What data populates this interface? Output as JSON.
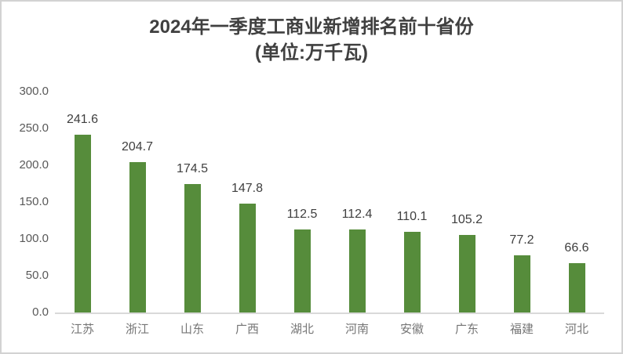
{
  "title": {
    "line1": "2024年一季度工商业新增排名前十省份",
    "line2": "(单位:万千瓦)"
  },
  "colors": {
    "bar": "#568c3b",
    "title_text": "#404040",
    "value_label_text": "#3f3f3f",
    "axis_tick_text": "#595959",
    "category_text": "#757575",
    "axis_line": "#d9d9d9",
    "frame_border": "#d2d2d2",
    "background": "#ffffff"
  },
  "chart_data": {
    "type": "bar",
    "title": "2024年一季度工商业新增排名前十省份",
    "subtitle": "(单位:万千瓦)",
    "categories": [
      "江苏",
      "浙江",
      "山东",
      "广西",
      "湖北",
      "河南",
      "安徽",
      "广东",
      "福建",
      "河北"
    ],
    "values": [
      241.6,
      204.7,
      174.5,
      147.8,
      112.5,
      112.4,
      110.1,
      105.2,
      77.2,
      66.6
    ],
    "xlabel": "",
    "ylabel": "",
    "ylim": [
      0,
      300
    ],
    "yticks": [
      0,
      50,
      100,
      150,
      200,
      250,
      300
    ],
    "ytick_decimals": 1,
    "grid": false,
    "legend": false,
    "value_labels": true,
    "bar_color": "#568c3b"
  }
}
